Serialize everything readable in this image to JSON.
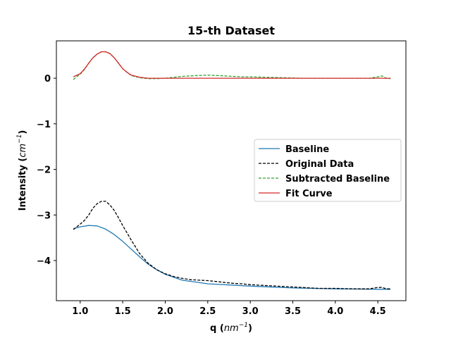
{
  "chart_data": {
    "type": "line",
    "title": "15-th Dataset",
    "xlabel_main": "q (",
    "xlabel_unit": "nm",
    "xlabel_exp": "−1",
    "xlabel_close": ")",
    "ylabel_main": "Intensity (",
    "ylabel_unit": "cm",
    "ylabel_exp": "−1",
    "ylabel_close": ")",
    "xlim": [
      0.72,
      4.83
    ],
    "ylim": [
      -4.88,
      0.82
    ],
    "xticks": [
      1.0,
      1.5,
      2.0,
      2.5,
      3.0,
      3.5,
      4.0,
      4.5
    ],
    "xtick_labels": [
      "1.0",
      "1.5",
      "2.0",
      "2.5",
      "3.0",
      "3.5",
      "4.0",
      "4.5"
    ],
    "yticks": [
      0,
      -1,
      -2,
      -3,
      -4
    ],
    "ytick_labels": [
      "0",
      "−1",
      "−2",
      "−3",
      "−4"
    ],
    "grid": false,
    "legend_position": "center-right",
    "series": [
      {
        "name": "Baseline",
        "color": "#1f77b4",
        "style": "solid",
        "x": [
          0.92,
          1.0,
          1.1,
          1.2,
          1.3,
          1.4,
          1.5,
          1.6,
          1.7,
          1.8,
          1.9,
          2.0,
          2.2,
          2.5,
          3.0,
          3.5,
          4.0,
          4.5,
          4.65
        ],
        "y": [
          -3.3,
          -3.26,
          -3.23,
          -3.24,
          -3.31,
          -3.43,
          -3.58,
          -3.75,
          -3.92,
          -4.08,
          -4.2,
          -4.3,
          -4.43,
          -4.51,
          -4.56,
          -4.6,
          -4.62,
          -4.63,
          -4.63
        ]
      },
      {
        "name": "Original Data",
        "color": "#000000",
        "style": "dashed",
        "x": [
          0.92,
          1.0,
          1.05,
          1.1,
          1.15,
          1.2,
          1.25,
          1.3,
          1.35,
          1.4,
          1.45,
          1.5,
          1.6,
          1.7,
          1.8,
          1.9,
          2.0,
          2.1,
          2.2,
          2.3,
          2.4,
          2.5,
          2.6,
          2.7,
          2.8,
          2.9,
          3.0,
          3.2,
          3.4,
          3.6,
          3.8,
          4.0,
          4.2,
          4.4,
          4.5,
          4.55,
          4.6,
          4.65
        ],
        "y": [
          -3.32,
          -3.2,
          -3.12,
          -3.0,
          -2.85,
          -2.75,
          -2.7,
          -2.7,
          -2.78,
          -2.9,
          -3.06,
          -3.23,
          -3.55,
          -3.85,
          -4.06,
          -4.2,
          -4.29,
          -4.35,
          -4.39,
          -4.42,
          -4.43,
          -4.44,
          -4.46,
          -4.48,
          -4.5,
          -4.51,
          -4.53,
          -4.55,
          -4.57,
          -4.59,
          -4.61,
          -4.61,
          -4.62,
          -4.62,
          -4.59,
          -4.59,
          -4.62,
          -4.62
        ]
      },
      {
        "name": "Subtracted Baseline",
        "color": "#2ca02c",
        "style": "dashed",
        "x": [
          0.92,
          1.0,
          1.05,
          1.1,
          1.15,
          1.2,
          1.25,
          1.3,
          1.35,
          1.4,
          1.45,
          1.5,
          1.6,
          1.7,
          1.8,
          1.9,
          2.0,
          2.1,
          2.2,
          2.3,
          2.4,
          2.5,
          2.6,
          2.7,
          2.8,
          2.9,
          3.0,
          3.2,
          3.4,
          3.6,
          3.8,
          4.0,
          4.2,
          4.4,
          4.5,
          4.55,
          4.6,
          4.65
        ],
        "y": [
          -0.03,
          0.09,
          0.19,
          0.33,
          0.45,
          0.53,
          0.58,
          0.58,
          0.54,
          0.45,
          0.33,
          0.21,
          0.06,
          0.01,
          -0.01,
          -0.01,
          0.0,
          0.02,
          0.04,
          0.05,
          0.06,
          0.07,
          0.06,
          0.05,
          0.04,
          0.03,
          0.03,
          0.02,
          0.01,
          0.0,
          0.0,
          0.0,
          0.0,
          0.0,
          0.03,
          0.05,
          0.0,
          -0.01
        ]
      },
      {
        "name": "Fit Curve",
        "color": "#d62728",
        "style": "solid",
        "x": [
          0.92,
          1.0,
          1.05,
          1.1,
          1.15,
          1.2,
          1.25,
          1.3,
          1.35,
          1.4,
          1.45,
          1.5,
          1.55,
          1.6,
          1.7,
          1.8,
          1.9,
          2.0,
          2.5,
          3.0,
          3.5,
          4.0,
          4.5,
          4.65
        ],
        "y": [
          0.03,
          0.1,
          0.2,
          0.33,
          0.45,
          0.53,
          0.58,
          0.58,
          0.54,
          0.45,
          0.33,
          0.21,
          0.13,
          0.07,
          0.02,
          0.0,
          0.0,
          0.0,
          0.0,
          0.0,
          0.0,
          0.0,
          0.0,
          0.0
        ]
      }
    ]
  }
}
